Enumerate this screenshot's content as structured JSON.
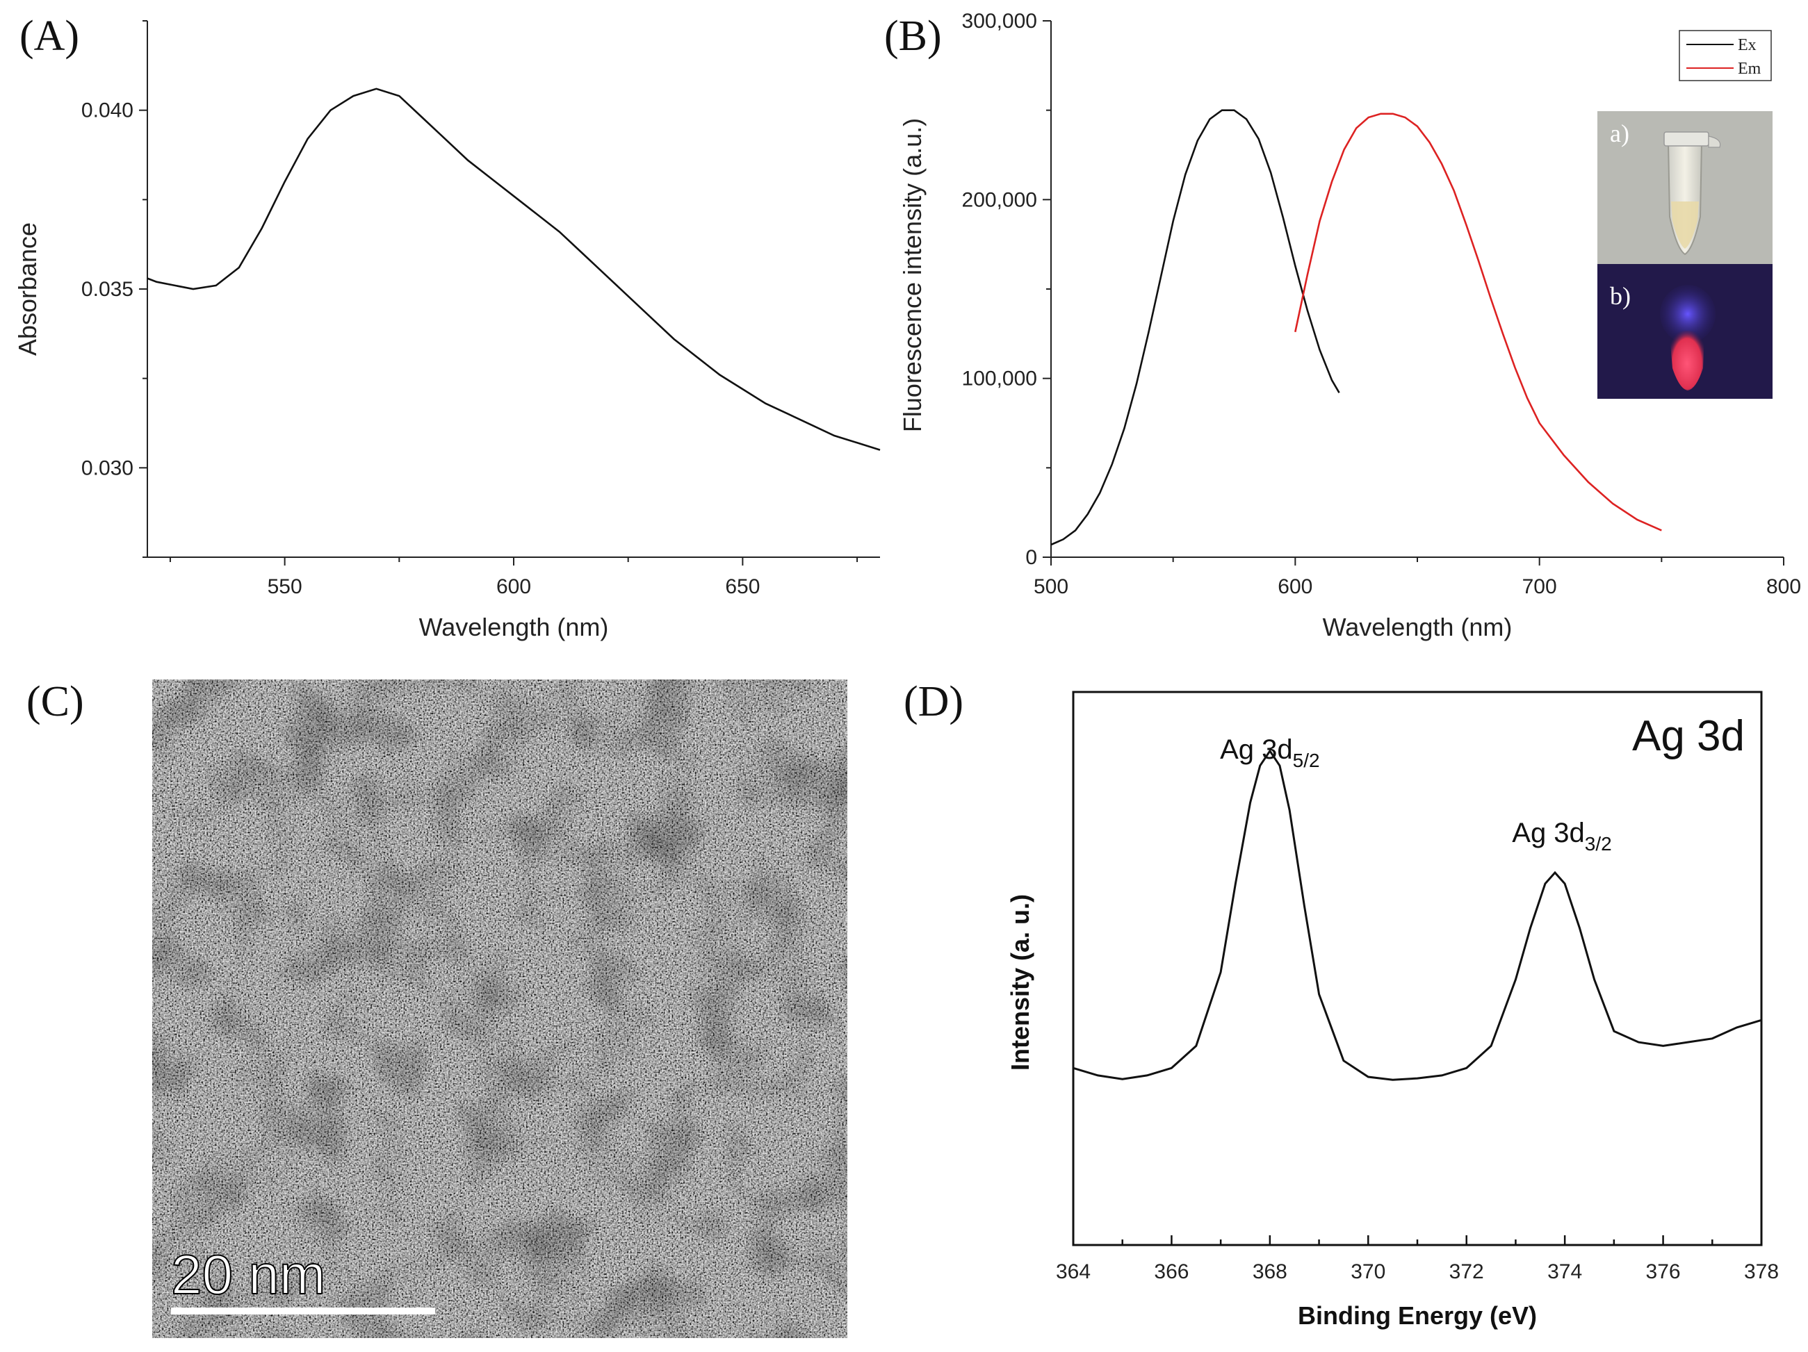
{
  "figure": {
    "panels": [
      "(A)",
      "(B)",
      "(C)",
      "(D)"
    ]
  },
  "chart_data": [
    {
      "panel": "(A)",
      "type": "line",
      "xlabel": "Wavelength (nm)",
      "ylabel": "Absorbance",
      "xlim": [
        520,
        680
      ],
      "ylim": [
        0.0275,
        0.0425
      ],
      "xticks": [
        550,
        600,
        650
      ],
      "yticks": [
        0.03,
        0.035,
        0.04
      ],
      "ytick_labels": [
        "0.030",
        "0.035",
        "0.040"
      ],
      "series": [
        {
          "name": "Absorbance",
          "color": "#111111",
          "x": [
            520,
            522,
            526,
            530,
            535,
            540,
            545,
            550,
            555,
            560,
            565,
            570,
            575,
            580,
            585,
            590,
            595,
            600,
            605,
            610,
            615,
            620,
            625,
            630,
            635,
            640,
            645,
            650,
            655,
            660,
            665,
            670,
            675,
            680
          ],
          "y": [
            0.0353,
            0.0352,
            0.0351,
            0.035,
            0.0351,
            0.0356,
            0.0367,
            0.038,
            0.0392,
            0.04,
            0.0404,
            0.0406,
            0.0404,
            0.0398,
            0.0392,
            0.0386,
            0.0381,
            0.0376,
            0.0371,
            0.0366,
            0.036,
            0.0354,
            0.0348,
            0.0342,
            0.0336,
            0.0331,
            0.0326,
            0.0322,
            0.0318,
            0.0315,
            0.0312,
            0.0309,
            0.0307,
            0.0305
          ]
        }
      ]
    },
    {
      "panel": "(B)",
      "type": "line",
      "xlabel": "Wavelength (nm)",
      "ylabel": "Fluorescence intensity (a.u.)",
      "xlim": [
        500,
        800
      ],
      "ylim": [
        0,
        300000
      ],
      "xticks": [
        500,
        600,
        700,
        800
      ],
      "yticks": [
        0,
        100000,
        200000,
        300000
      ],
      "ytick_labels": [
        "0",
        "100,000",
        "200,000",
        "300,000"
      ],
      "legend": {
        "position": "top-right",
        "entries": [
          "Ex",
          "Em"
        ]
      },
      "series": [
        {
          "name": "Ex",
          "color": "#111111",
          "x": [
            500,
            505,
            510,
            515,
            520,
            525,
            530,
            535,
            540,
            545,
            550,
            555,
            560,
            565,
            570,
            575,
            580,
            585,
            590,
            595,
            600,
            605,
            610,
            615,
            618
          ],
          "y": [
            7000,
            10000,
            15000,
            24000,
            36000,
            52000,
            72000,
            97000,
            126000,
            157000,
            188000,
            214000,
            233000,
            245000,
            250000,
            250000,
            245000,
            234000,
            215000,
            190000,
            163000,
            138000,
            116000,
            99000,
            92000
          ]
        },
        {
          "name": "Em",
          "color": "#dd2222",
          "x": [
            600,
            605,
            610,
            615,
            620,
            625,
            630,
            635,
            640,
            645,
            650,
            655,
            660,
            665,
            670,
            675,
            680,
            685,
            690,
            695,
            700,
            710,
            720,
            730,
            740,
            750
          ],
          "y": [
            126000,
            158000,
            188000,
            210000,
            228000,
            240000,
            246000,
            248000,
            248000,
            246000,
            241000,
            232000,
            220000,
            205000,
            186000,
            166000,
            145000,
            125000,
            106000,
            89000,
            75000,
            57000,
            42000,
            30000,
            21000,
            15000
          ]
        }
      ],
      "inset": {
        "labels": [
          "a)",
          "b)"
        ]
      }
    },
    {
      "panel": "(D)",
      "type": "line",
      "xlabel": "Binding Energy (eV)",
      "ylabel": "Intensity (a. u.)",
      "xlim": [
        364,
        378
      ],
      "ylim": [
        0,
        1
      ],
      "xticks": [
        364,
        366,
        368,
        370,
        372,
        374,
        376,
        378
      ],
      "corner_label": "Ag 3d",
      "annotations": [
        {
          "base": "Ag 3d",
          "subscript": "5/2",
          "x": 368.0
        },
        {
          "base": "Ag 3d",
          "subscript": "3/2",
          "x": 373.8
        }
      ],
      "series": [
        {
          "name": "Ag 3d",
          "color": "#111111",
          "x": [
            364,
            364.5,
            365,
            365.5,
            366,
            366.5,
            367,
            367.3,
            367.6,
            367.8,
            368,
            368.2,
            368.4,
            368.7,
            369,
            369.5,
            370,
            370.5,
            371,
            371.5,
            372,
            372.5,
            373,
            373.3,
            373.6,
            373.8,
            374,
            374.3,
            374.6,
            375,
            375.5,
            376,
            376.5,
            377,
            377.5,
            378
          ],
          "y": [
            0.49,
            0.48,
            0.475,
            0.48,
            0.49,
            0.52,
            0.62,
            0.74,
            0.85,
            0.9,
            0.92,
            0.9,
            0.84,
            0.71,
            0.59,
            0.5,
            0.478,
            0.474,
            0.476,
            0.48,
            0.49,
            0.52,
            0.61,
            0.68,
            0.74,
            0.755,
            0.74,
            0.68,
            0.61,
            0.54,
            0.525,
            0.52,
            0.525,
            0.53,
            0.545,
            0.555
          ]
        }
      ]
    }
  ],
  "tem": {
    "panel": "(C)",
    "scale_bar_label": "20 nm"
  }
}
